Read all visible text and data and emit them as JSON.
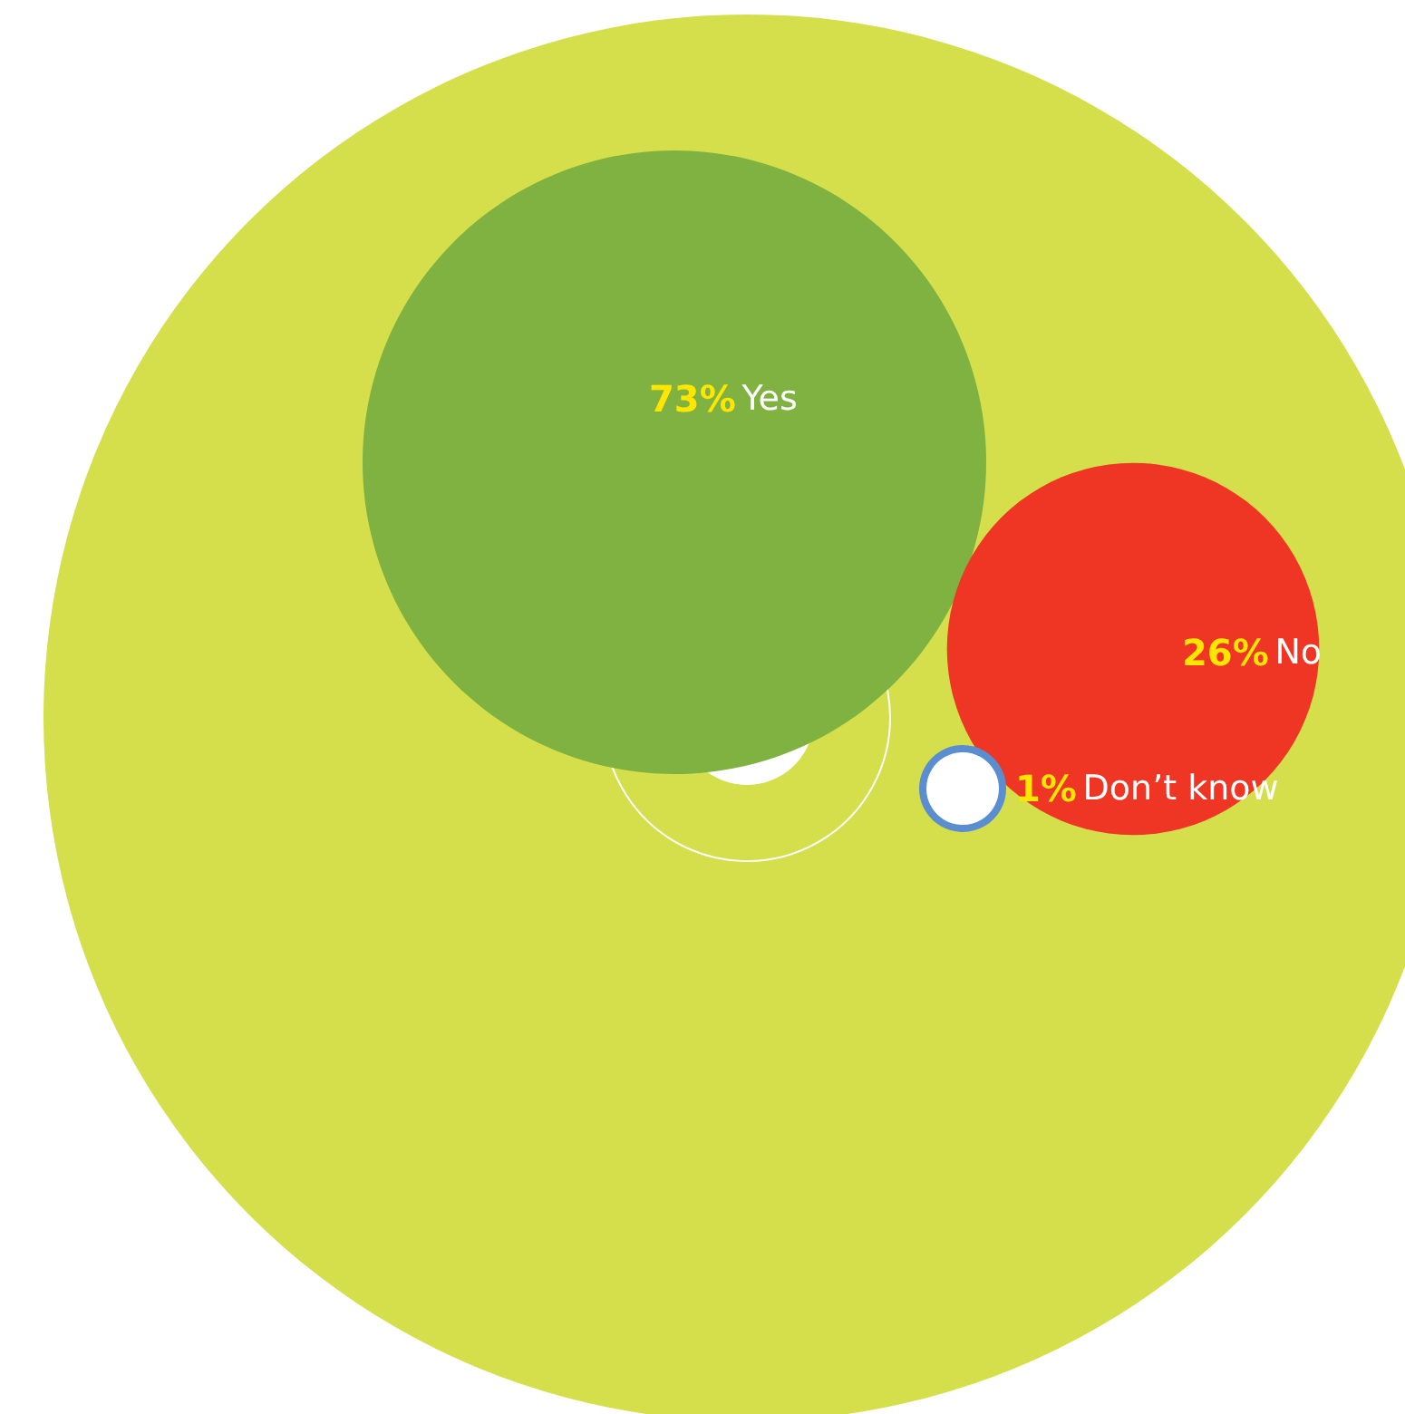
{
  "chart_data": {
    "type": "other",
    "categories": [
      "Yes",
      "No",
      "Don’t know"
    ],
    "values": [
      73,
      26,
      1
    ],
    "value_labels": [
      "73%",
      "26%",
      "1%"
    ],
    "colors": [
      "#7fb241",
      "#ef3524",
      "#ffffff"
    ]
  }
}
